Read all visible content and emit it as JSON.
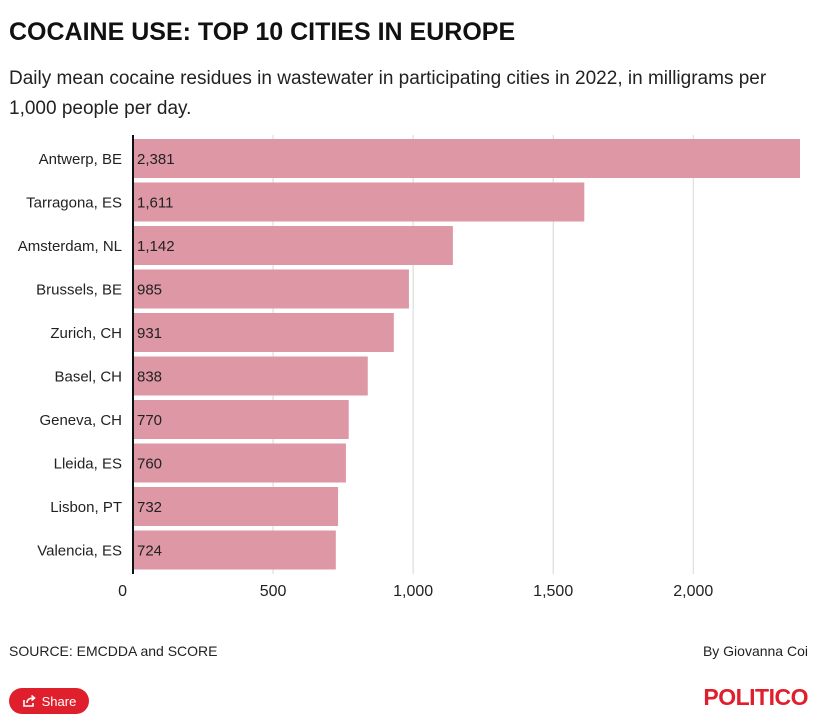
{
  "header": {
    "title": "COCAINE USE: TOP 10 CITIES IN EUROPE",
    "subtitle": "Daily mean cocaine residues in wastewater in participating cities in 2022, in milligrams per 1,000 people per day."
  },
  "chart_data": {
    "type": "bar",
    "orientation": "horizontal",
    "categories": [
      "Antwerp, BE",
      "Tarragona, ES",
      "Amsterdam, NL",
      "Brussels, BE",
      "Zurich, CH",
      "Basel, CH",
      "Geneva, CH",
      "Lleida, ES",
      "Lisbon, PT",
      "Valencia, ES"
    ],
    "values": [
      2381,
      1611,
      1142,
      985,
      931,
      838,
      770,
      760,
      732,
      724
    ],
    "value_labels": [
      "2,381",
      "1,611",
      "1,142",
      "985",
      "931",
      "838",
      "770",
      "760",
      "732",
      "724"
    ],
    "xlim": [
      0,
      2381
    ],
    "xticks": [
      0,
      500,
      1000,
      1500,
      2000
    ],
    "xtick_labels": [
      "0",
      "500",
      "1,000",
      "1,500",
      "2,000"
    ],
    "grid": true,
    "bar_color": "#de97a4",
    "grid_color": "#d6d6d6",
    "axis_color": "#111111"
  },
  "footer": {
    "source": "SOURCE: EMCDDA and SCORE",
    "byline": "By Giovanna Coi",
    "share_label": "Share",
    "logo": "POLITICO"
  },
  "colors": {
    "brand": "#e01f2d"
  }
}
